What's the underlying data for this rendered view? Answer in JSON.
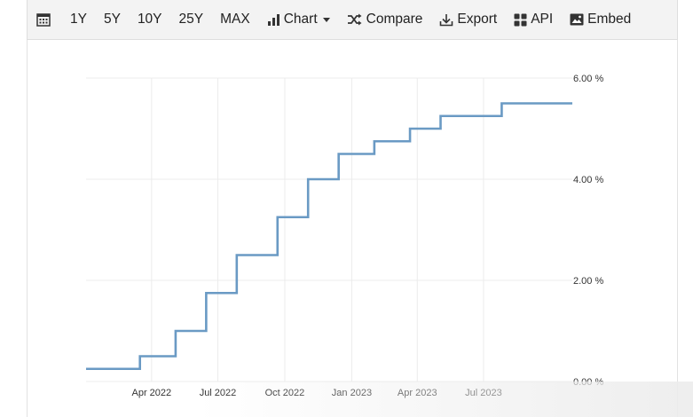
{
  "toolbar": {
    "ranges": [
      "1Y",
      "5Y",
      "10Y",
      "25Y",
      "MAX"
    ],
    "chart_label": "Chart",
    "compare_label": "Compare",
    "export_label": "Export",
    "api_label": "API",
    "embed_label": "Embed"
  },
  "colors": {
    "line": "#6a9ac4",
    "grid": "#ececec",
    "axis_text": "#333333"
  },
  "chart_data": {
    "type": "line",
    "step": true,
    "title": "",
    "xlabel": "",
    "ylabel": "",
    "ylim": [
      0,
      6
    ],
    "xlim": [
      "2022-01-01",
      "2023-10-31"
    ],
    "y_ticks": [
      0,
      2,
      4,
      6
    ],
    "y_tick_labels": [
      "0.00 %",
      "2.00 %",
      "4.00 %",
      "6.00 %"
    ],
    "x_ticks": [
      "2022-04-01",
      "2022-07-01",
      "2022-10-01",
      "2023-01-01",
      "2023-04-01",
      "2023-07-01"
    ],
    "x_tick_labels": [
      "Apr 2022",
      "Jul 2022",
      "Oct 2022",
      "Jan 2023",
      "Apr 2023",
      "Jul 2023"
    ],
    "grid": true,
    "series": [
      {
        "x": [
          "2022-01-01",
          "2022-03-16",
          "2022-05-04",
          "2022-06-15",
          "2022-07-27",
          "2022-09-21",
          "2022-11-02",
          "2022-12-14",
          "2023-02-01",
          "2023-03-22",
          "2023-05-03",
          "2023-07-26",
          "2023-10-31"
        ],
        "values": [
          0.25,
          0.5,
          1.0,
          1.75,
          2.5,
          3.25,
          4.0,
          4.5,
          4.75,
          5.0,
          5.25,
          5.5,
          5.5
        ]
      }
    ]
  }
}
